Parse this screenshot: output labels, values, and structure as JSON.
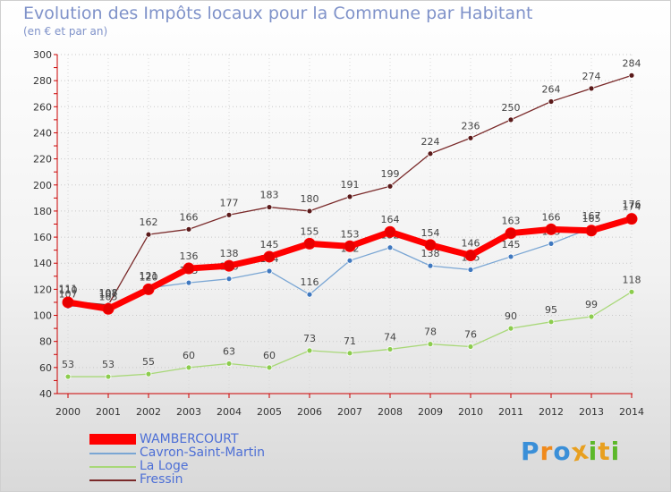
{
  "chart_data": {
    "type": "line",
    "title": "Evolution des Impôts locaux pour la Commune par Habitant",
    "subtitle": "(en € et par an)",
    "xlabel": "",
    "ylabel": "",
    "ylim": [
      40,
      300
    ],
    "yticks": [
      40,
      60,
      80,
      100,
      120,
      140,
      160,
      180,
      200,
      220,
      240,
      260,
      280,
      300
    ],
    "x": [
      "2000",
      "2001",
      "2002",
      "2003",
      "2004",
      "2005",
      "2006",
      "2007",
      "2008",
      "2009",
      "2010",
      "2011",
      "2012",
      "2013",
      "2014"
    ],
    "series": [
      {
        "name": "Fressin",
        "color": "#7a2a2a",
        "marker": "#5a1a1a",
        "values": [
          111,
          108,
          162,
          166,
          177,
          183,
          180,
          191,
          199,
          224,
          236,
          250,
          264,
          274,
          284
        ],
        "labels": [
          "111",
          "108",
          "162",
          "166",
          "177",
          "183",
          "180",
          "191",
          "199",
          "224",
          "236",
          "250",
          "264",
          "274",
          "284"
        ]
      },
      {
        "name": "La Loge",
        "color": "#a8d878",
        "marker": "#8ccc4e",
        "values": [
          53,
          53,
          55,
          60,
          63,
          60,
          73,
          71,
          74,
          78,
          76,
          90,
          95,
          99,
          118
        ],
        "labels": [
          "53",
          "53",
          "55",
          "60",
          "63",
          "60",
          "73",
          "71",
          "74",
          "78",
          "76",
          "90",
          "95",
          "99",
          "118"
        ]
      },
      {
        "name": "Cavron-Saint-Martin",
        "color": "#7aa6d4",
        "marker": "#3f78bf",
        "values": [
          107,
          107,
          121,
          125,
          128,
          134,
          116,
          142,
          152,
          138,
          135,
          145,
          155,
          167,
          176
        ],
        "labels": [
          "107",
          "107",
          "121",
          "125",
          "128",
          "134",
          "116",
          "142",
          "152",
          "138",
          "135",
          "145",
          "155",
          "167",
          "176"
        ]
      },
      {
        "name": "WAMBERCOURT",
        "color": "#ff0000",
        "marker": "#e60000",
        "values": [
          110,
          105,
          120,
          136,
          138,
          145,
          155,
          153,
          164,
          154,
          146,
          163,
          166,
          165,
          174
        ],
        "labels": [
          "110",
          "105",
          "120",
          "136",
          "138",
          "145",
          "155",
          "153",
          "164",
          "154",
          "146",
          "163",
          "166",
          "165",
          "174"
        ]
      }
    ],
    "legend": [
      "WAMBERCOURT",
      "Cavron-Saint-Martin",
      "La Loge",
      "Fressin"
    ],
    "legend_position": "bottom-left"
  },
  "logo": {
    "letters": [
      "P",
      "r",
      "o",
      "x",
      "i",
      "t",
      "i"
    ],
    "colors": [
      "#3a8fd8",
      "#f08a1c",
      "#3a8fd8",
      "#e8a020",
      "#5cb82a",
      "#e8a020",
      "#5cb82a"
    ]
  }
}
